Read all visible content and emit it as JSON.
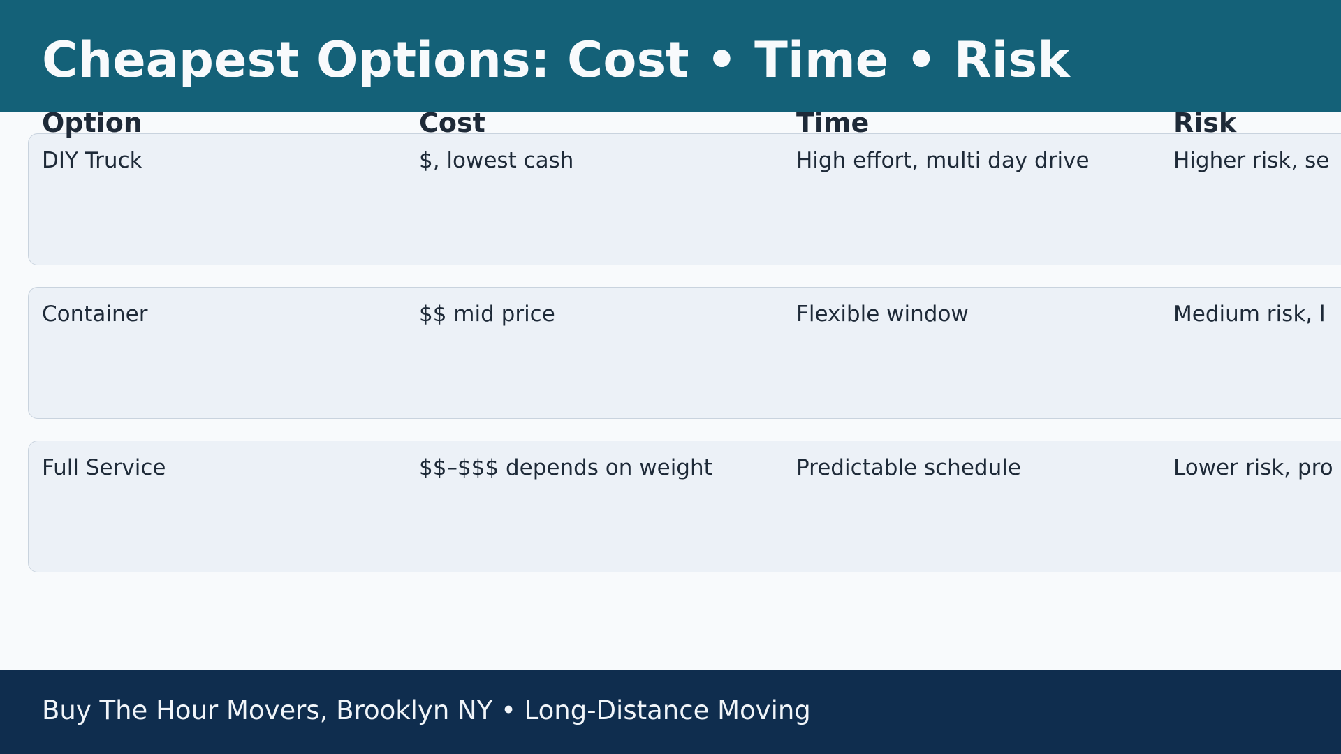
{
  "header": {
    "title": "Cheapest Options: Cost • Time • Risk"
  },
  "table": {
    "columns": [
      "Option",
      "Cost",
      "Time",
      "Risk"
    ],
    "rows": [
      [
        "DIY Truck",
        "$, lowest cash",
        "High effort, multi day drive",
        "Higher risk, se"
      ],
      [
        "Container",
        "$$ mid price",
        "Flexible window",
        "Medium risk, l"
      ],
      [
        "Full Service",
        "$$–$$$ depends on weight",
        "Predictable schedule",
        "Lower risk, pro"
      ]
    ]
  },
  "footer": {
    "text": "Buy The Hour Movers, Brooklyn NY • Long-Distance Moving"
  }
}
